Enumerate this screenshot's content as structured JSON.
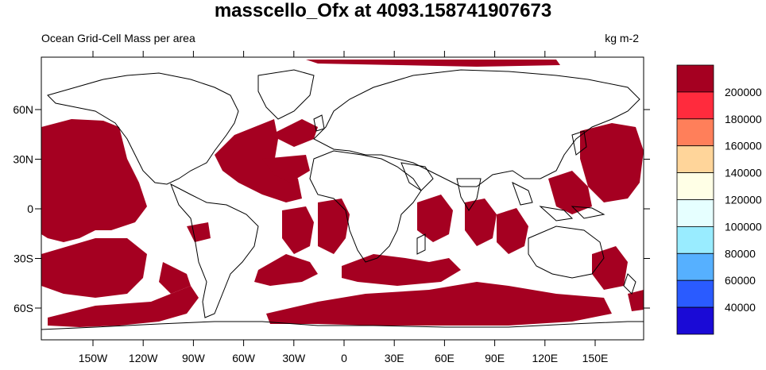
{
  "title": "masscello_Ofx at 4093.158741907673",
  "subtitle_left": "Ocean Grid-Cell Mass per area",
  "subtitle_right": "kg m-2",
  "map": {
    "x_ticks": [
      "150W",
      "120W",
      "90W",
      "60W",
      "30W",
      "0",
      "30E",
      "60E",
      "90E",
      "120E",
      "150E"
    ],
    "y_ticks": [
      "60N",
      "30N",
      "0",
      "30S",
      "60S"
    ],
    "ocean_color": "#a50021",
    "land_color": "#ffffff"
  },
  "colorbar": {
    "labels": [
      "200000",
      "180000",
      "160000",
      "140000",
      "120000",
      "100000",
      "80000",
      "60000",
      "40000"
    ],
    "colors": [
      "#a50021",
      "#ff2b3d",
      "#ff7f5a",
      "#ffd59a",
      "#ffffe6",
      "#e6ffff",
      "#99ecff",
      "#56b0ff",
      "#2a5bff",
      "#1a0ad6"
    ]
  }
}
